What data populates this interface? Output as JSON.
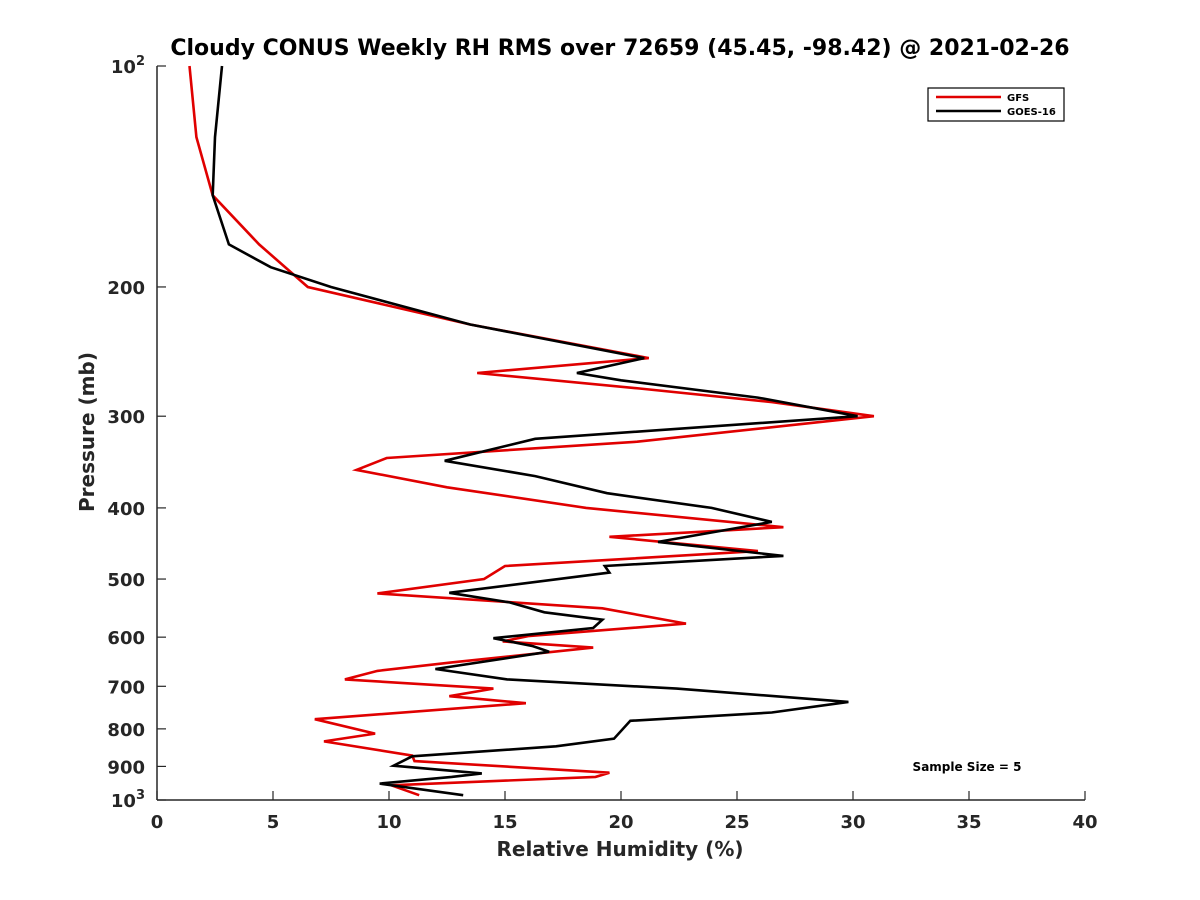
{
  "chart_data": {
    "type": "line",
    "title": "Cloudy CONUS Weekly RH RMS over 72659 (45.45, -98.42) @ 2021-02-26",
    "xlabel": "Relative Humidity (%)",
    "ylabel": "Pressure (mb)",
    "xlim": [
      0,
      40
    ],
    "ylim": [
      100,
      1000
    ],
    "yscale": "log",
    "y_reversed": true,
    "grid": false,
    "legend_position": "top-right",
    "x_ticks": [
      "0",
      "5",
      "10",
      "15",
      "20",
      "25",
      "30",
      "35",
      "40"
    ],
    "y_ticks": [
      {
        "value": 100,
        "base": "10",
        "exp": "2"
      },
      {
        "value": 200,
        "label": "200"
      },
      {
        "value": 300,
        "label": "300"
      },
      {
        "value": 400,
        "label": "400"
      },
      {
        "value": 500,
        "label": "500"
      },
      {
        "value": 600,
        "label": "600"
      },
      {
        "value": 700,
        "label": "700"
      },
      {
        "value": 800,
        "label": "800"
      },
      {
        "value": 900,
        "label": "900"
      },
      {
        "value": 1000,
        "base": "10",
        "exp": "3"
      }
    ],
    "annotation": "Sample Size = 5",
    "series": [
      {
        "name": "GFS",
        "color": "#e00000",
        "points": [
          [
            1.4,
            100
          ],
          [
            1.7,
            125
          ],
          [
            2.4,
            150
          ],
          [
            4.4,
            175
          ],
          [
            6.5,
            200
          ],
          [
            13.5,
            225
          ],
          [
            21.2,
            250
          ],
          [
            13.8,
            262
          ],
          [
            20.8,
            275
          ],
          [
            26.5,
            287
          ],
          [
            30.9,
            300
          ],
          [
            20.7,
            325
          ],
          [
            9.9,
            342
          ],
          [
            8.6,
            355
          ],
          [
            12.5,
            375
          ],
          [
            18.5,
            400
          ],
          [
            27.0,
            425
          ],
          [
            19.5,
            438
          ],
          [
            25.9,
            458
          ],
          [
            15.0,
            480
          ],
          [
            14.1,
            500
          ],
          [
            9.5,
            523
          ],
          [
            19.2,
            548
          ],
          [
            22.8,
            575
          ],
          [
            16.0,
            598
          ],
          [
            14.9,
            608
          ],
          [
            18.8,
            620
          ],
          [
            12.6,
            650
          ],
          [
            9.5,
            667
          ],
          [
            8.1,
            685
          ],
          [
            14.5,
            705
          ],
          [
            12.6,
            722
          ],
          [
            15.9,
            738
          ],
          [
            6.8,
            776
          ],
          [
            9.4,
            812
          ],
          [
            7.2,
            832
          ],
          [
            11.0,
            870
          ],
          [
            11.1,
            885
          ],
          [
            19.5,
            918
          ],
          [
            18.9,
            930
          ],
          [
            10.1,
            955
          ],
          [
            11.3,
            985
          ]
        ]
      },
      {
        "name": "GOES-16",
        "color": "#000000",
        "points": [
          [
            2.8,
            100
          ],
          [
            2.5,
            125
          ],
          [
            2.4,
            150
          ],
          [
            3.1,
            175
          ],
          [
            4.9,
            188
          ],
          [
            7.5,
            200
          ],
          [
            13.5,
            225
          ],
          [
            21.0,
            250
          ],
          [
            18.1,
            262
          ],
          [
            20.0,
            268
          ],
          [
            25.9,
            283
          ],
          [
            30.2,
            300
          ],
          [
            16.3,
            322
          ],
          [
            12.4,
            345
          ],
          [
            16.3,
            362
          ],
          [
            19.4,
            382
          ],
          [
            23.9,
            400
          ],
          [
            26.5,
            418
          ],
          [
            21.6,
            445
          ],
          [
            27.0,
            465
          ],
          [
            19.3,
            480
          ],
          [
            19.5,
            490
          ],
          [
            12.6,
            522
          ],
          [
            15.2,
            538
          ],
          [
            16.7,
            555
          ],
          [
            19.2,
            568
          ],
          [
            18.8,
            583
          ],
          [
            14.5,
            602
          ],
          [
            16.2,
            617
          ],
          [
            16.9,
            628
          ],
          [
            12.0,
            663
          ],
          [
            15.1,
            685
          ],
          [
            22.4,
            705
          ],
          [
            29.8,
            735
          ],
          [
            26.5,
            760
          ],
          [
            20.4,
            780
          ],
          [
            19.7,
            825
          ],
          [
            17.2,
            845
          ],
          [
            11.0,
            872
          ],
          [
            10.2,
            898
          ],
          [
            14.0,
            920
          ],
          [
            12.7,
            930
          ],
          [
            9.6,
            950
          ],
          [
            13.2,
            985
          ]
        ]
      }
    ]
  }
}
